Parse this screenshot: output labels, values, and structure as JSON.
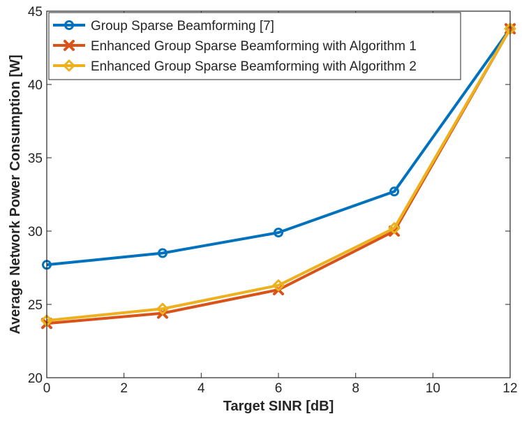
{
  "chart_data": {
    "type": "line",
    "title": "",
    "xlabel": "Target SINR [dB]",
    "ylabel": "Average Network Power Consumption [W]",
    "xlim": [
      0,
      12
    ],
    "ylim": [
      20,
      45
    ],
    "xticks": [
      0,
      2,
      4,
      6,
      8,
      10,
      12
    ],
    "yticks": [
      20,
      25,
      30,
      35,
      40,
      45
    ],
    "grid": false,
    "legend_position": "top-left",
    "x": [
      0,
      3,
      6,
      9,
      12
    ],
    "series": [
      {
        "name": "Group Sparse Beamforming [7]",
        "values": [
          27.7,
          28.5,
          29.9,
          32.7,
          43.8
        ],
        "color": "#0072BD",
        "marker": "circle"
      },
      {
        "name": "Enhanced Group Sparse Beamforming with Algorithm 1",
        "values": [
          23.7,
          24.4,
          26.0,
          30.0,
          43.8
        ],
        "color": "#D95319",
        "marker": "x"
      },
      {
        "name": "Enhanced Group Sparse Beamforming with Algorithm 2",
        "values": [
          23.9,
          24.7,
          26.3,
          30.2,
          43.8
        ],
        "color": "#EDB120",
        "marker": "diamond"
      }
    ]
  }
}
